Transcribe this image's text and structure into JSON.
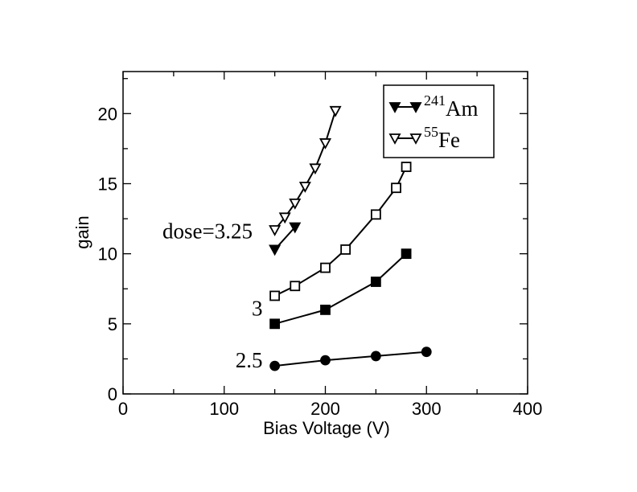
{
  "chart_data": {
    "type": "line",
    "xlabel": "Bias Voltage (V)",
    "ylabel": "gain",
    "xlim": [
      0,
      400
    ],
    "ylim": [
      0,
      23
    ],
    "xticks": [
      0,
      100,
      200,
      300,
      400
    ],
    "yticks": [
      0,
      5,
      10,
      15,
      20
    ],
    "grid": false,
    "legend_position": "top-right",
    "legend": [
      {
        "sup": "241",
        "label": "Am",
        "marker": "triangle-down-filled"
      },
      {
        "sup": "55",
        "label": "Fe",
        "marker": "triangle-down-open"
      }
    ],
    "series": [
      {
        "marker": "circle-filled",
        "x": [
          150,
          200,
          250,
          300
        ],
        "y": [
          2.0,
          2.4,
          2.7,
          3.0
        ]
      },
      {
        "marker": "square-filled",
        "x": [
          150,
          200,
          250,
          280
        ],
        "y": [
          5.0,
          6.0,
          8.0,
          10.0
        ]
      },
      {
        "marker": "square-open",
        "x": [
          150,
          170,
          200,
          220,
          250,
          270,
          280
        ],
        "y": [
          7.0,
          7.7,
          9.0,
          10.3,
          12.8,
          14.7,
          16.2
        ]
      },
      {
        "marker": "triangle-down-filled",
        "x": [
          150,
          170
        ],
        "y": [
          10.3,
          11.9
        ]
      },
      {
        "marker": "triangle-down-open",
        "x": [
          150,
          160,
          170,
          180,
          190,
          200,
          210
        ],
        "y": [
          11.7,
          12.6,
          13.6,
          14.8,
          16.1,
          17.9,
          20.2
        ]
      }
    ],
    "annotations": [
      {
        "text": "dose=3.25",
        "x": 128,
        "y": 11.1
      },
      {
        "text": "3",
        "x": 138,
        "y": 5.6
      },
      {
        "text": "2.5",
        "x": 138,
        "y": 1.9
      }
    ]
  }
}
